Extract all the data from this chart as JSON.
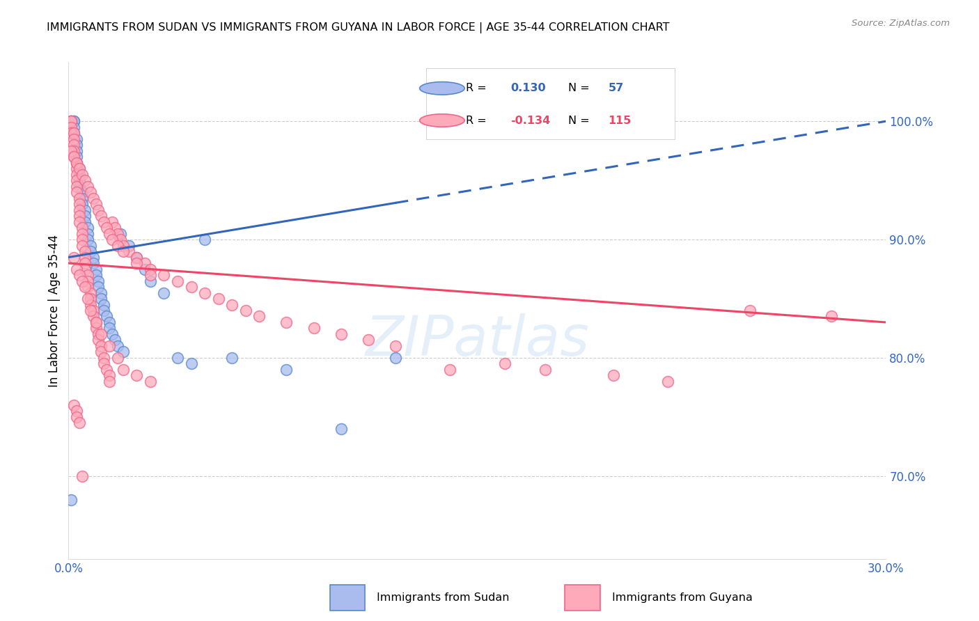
{
  "title": "IMMIGRANTS FROM SUDAN VS IMMIGRANTS FROM GUYANA IN LABOR FORCE | AGE 35-44 CORRELATION CHART",
  "source": "Source: ZipAtlas.com",
  "ylabel": "In Labor Force | Age 35-44",
  "right_yticks": [
    70.0,
    80.0,
    90.0,
    100.0
  ],
  "sudan_R": 0.13,
  "sudan_N": 57,
  "guyana_R": -0.134,
  "guyana_N": 115,
  "sudan_color_face": "#AABBEE",
  "sudan_color_edge": "#5588CC",
  "guyana_color_face": "#FFAABB",
  "guyana_color_edge": "#EE6688",
  "sudan_line_color": "#3366BB",
  "guyana_line_color": "#EE4466",
  "watermark": "ZIPatlas",
  "xlim": [
    0.0,
    0.3
  ],
  "ylim": [
    63.0,
    105.0
  ],
  "sudan_points_x": [
    0.001,
    0.001,
    0.002,
    0.002,
    0.002,
    0.002,
    0.003,
    0.003,
    0.003,
    0.003,
    0.003,
    0.004,
    0.004,
    0.004,
    0.004,
    0.005,
    0.005,
    0.005,
    0.006,
    0.006,
    0.006,
    0.007,
    0.007,
    0.007,
    0.008,
    0.008,
    0.009,
    0.009,
    0.01,
    0.01,
    0.011,
    0.011,
    0.012,
    0.012,
    0.013,
    0.013,
    0.014,
    0.015,
    0.015,
    0.016,
    0.017,
    0.018,
    0.019,
    0.02,
    0.022,
    0.025,
    0.028,
    0.03,
    0.035,
    0.04,
    0.045,
    0.05,
    0.06,
    0.08,
    0.1,
    0.12,
    0.001
  ],
  "sudan_points_y": [
    100.0,
    100.0,
    100.0,
    100.0,
    99.5,
    99.0,
    98.5,
    98.0,
    97.5,
    97.0,
    96.5,
    96.0,
    95.5,
    95.0,
    94.5,
    94.0,
    93.5,
    93.0,
    92.5,
    92.0,
    91.5,
    91.0,
    90.5,
    90.0,
    89.5,
    89.0,
    88.5,
    88.0,
    87.5,
    87.0,
    86.5,
    86.0,
    85.5,
    85.0,
    84.5,
    84.0,
    83.5,
    83.0,
    82.5,
    82.0,
    81.5,
    81.0,
    90.5,
    80.5,
    89.5,
    88.5,
    87.5,
    86.5,
    85.5,
    80.0,
    79.5,
    90.0,
    80.0,
    79.0,
    74.0,
    80.0,
    68.0
  ],
  "guyana_points_x": [
    0.001,
    0.001,
    0.001,
    0.001,
    0.002,
    0.002,
    0.002,
    0.002,
    0.002,
    0.003,
    0.003,
    0.003,
    0.003,
    0.003,
    0.003,
    0.004,
    0.004,
    0.004,
    0.004,
    0.004,
    0.005,
    0.005,
    0.005,
    0.005,
    0.006,
    0.006,
    0.006,
    0.006,
    0.007,
    0.007,
    0.007,
    0.008,
    0.008,
    0.008,
    0.009,
    0.009,
    0.01,
    0.01,
    0.011,
    0.011,
    0.012,
    0.012,
    0.013,
    0.013,
    0.014,
    0.015,
    0.015,
    0.016,
    0.017,
    0.018,
    0.019,
    0.02,
    0.022,
    0.025,
    0.028,
    0.03,
    0.035,
    0.04,
    0.045,
    0.05,
    0.055,
    0.06,
    0.065,
    0.07,
    0.08,
    0.09,
    0.1,
    0.11,
    0.12,
    0.14,
    0.001,
    0.002,
    0.003,
    0.004,
    0.005,
    0.006,
    0.007,
    0.008,
    0.009,
    0.01,
    0.011,
    0.012,
    0.013,
    0.014,
    0.015,
    0.016,
    0.018,
    0.02,
    0.025,
    0.03,
    0.002,
    0.003,
    0.004,
    0.005,
    0.006,
    0.007,
    0.008,
    0.01,
    0.012,
    0.015,
    0.018,
    0.02,
    0.025,
    0.03,
    0.16,
    0.175,
    0.2,
    0.22,
    0.25,
    0.28,
    0.002,
    0.003,
    0.003,
    0.004,
    0.005
  ],
  "guyana_points_y": [
    100.0,
    100.0,
    99.5,
    99.0,
    99.0,
    98.5,
    98.0,
    97.5,
    97.0,
    96.5,
    96.0,
    95.5,
    95.0,
    94.5,
    94.0,
    93.5,
    93.0,
    92.5,
    92.0,
    91.5,
    91.0,
    90.5,
    90.0,
    89.5,
    89.0,
    88.5,
    88.0,
    87.5,
    87.0,
    86.5,
    86.0,
    85.5,
    85.0,
    84.5,
    84.0,
    83.5,
    83.0,
    82.5,
    82.0,
    81.5,
    81.0,
    80.5,
    80.0,
    79.5,
    79.0,
    78.5,
    78.0,
    91.5,
    91.0,
    90.5,
    90.0,
    89.5,
    89.0,
    88.5,
    88.0,
    87.5,
    87.0,
    86.5,
    86.0,
    85.5,
    85.0,
    84.5,
    84.0,
    83.5,
    83.0,
    82.5,
    82.0,
    81.5,
    81.0,
    79.0,
    97.5,
    97.0,
    96.5,
    96.0,
    95.5,
    95.0,
    94.5,
    94.0,
    93.5,
    93.0,
    92.5,
    92.0,
    91.5,
    91.0,
    90.5,
    90.0,
    89.5,
    89.0,
    88.0,
    87.0,
    88.5,
    87.5,
    87.0,
    86.5,
    86.0,
    85.0,
    84.0,
    83.0,
    82.0,
    81.0,
    80.0,
    79.0,
    78.5,
    78.0,
    79.5,
    79.0,
    78.5,
    78.0,
    84.0,
    83.5,
    76.0,
    75.5,
    75.0,
    74.5,
    70.0
  ]
}
